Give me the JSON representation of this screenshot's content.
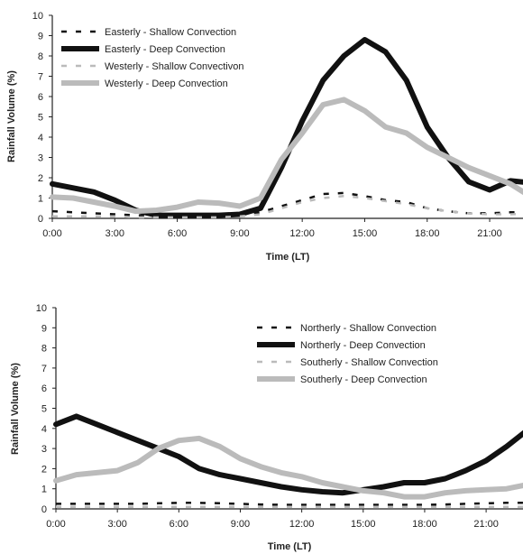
{
  "chart_data": [
    {
      "type": "line",
      "xlabel": "Time (LT)",
      "ylabel": "Rainfall Volume (%)",
      "ylim": [
        0,
        10
      ],
      "yticks": [
        0,
        1,
        2,
        3,
        4,
        5,
        6,
        7,
        8,
        9,
        10
      ],
      "xlim": [
        0,
        23
      ],
      "xticks": [
        "0:00",
        "3:00",
        "6:00",
        "9:00",
        "12:00",
        "15:00",
        "18:00",
        "21:00"
      ],
      "x": [
        0,
        1,
        2,
        3,
        4,
        5,
        6,
        7,
        8,
        9,
        10,
        11,
        12,
        13,
        14,
        15,
        16,
        17,
        18,
        19,
        20,
        21,
        22,
        23
      ],
      "grid": false,
      "legend_position": "top-left",
      "series": [
        {
          "name": "Easterly - Shallow Convection",
          "style": "dashed",
          "color": "#111111",
          "width": "thin",
          "values": [
            0.35,
            0.3,
            0.25,
            0.2,
            0.15,
            0.12,
            0.12,
            0.12,
            0.12,
            0.15,
            0.3,
            0.6,
            0.9,
            1.2,
            1.25,
            1.1,
            0.9,
            0.8,
            0.5,
            0.35,
            0.25,
            0.25,
            0.3,
            0.3
          ]
        },
        {
          "name": "Easterly - Deep Convection",
          "style": "solid",
          "color": "#111111",
          "width": "thick",
          "values": [
            1.7,
            1.5,
            1.3,
            0.9,
            0.4,
            0.15,
            0.15,
            0.15,
            0.15,
            0.2,
            0.5,
            2.5,
            4.8,
            6.8,
            8.0,
            8.8,
            8.2,
            6.8,
            4.5,
            3.0,
            1.8,
            1.4,
            1.85,
            1.75
          ]
        },
        {
          "name": "Westerly - Shallow Convectivon",
          "style": "dashed",
          "color": "#bbbbbb",
          "width": "thin",
          "values": [
            0.1,
            0.1,
            0.1,
            0.1,
            0.05,
            0.05,
            0.05,
            0.05,
            0.05,
            0.1,
            0.2,
            0.5,
            0.8,
            1.0,
            1.1,
            1.0,
            0.85,
            0.7,
            0.5,
            0.35,
            0.25,
            0.2,
            0.2,
            0.25
          ]
        },
        {
          "name": "Westerly - Deep Convection",
          "style": "solid",
          "color": "#bbbbbb",
          "width": "thick",
          "values": [
            1.05,
            1.0,
            0.8,
            0.6,
            0.35,
            0.4,
            0.55,
            0.8,
            0.75,
            0.6,
            1.0,
            2.9,
            4.2,
            5.6,
            5.85,
            5.3,
            4.5,
            4.2,
            3.5,
            3.0,
            2.5,
            2.1,
            1.7,
            1.05
          ]
        }
      ]
    },
    {
      "type": "line",
      "xlabel": "Time (LT)",
      "ylabel": "Rainfall Volume (%)",
      "ylim": [
        0,
        10
      ],
      "yticks": [
        0,
        1,
        2,
        3,
        4,
        5,
        6,
        7,
        8,
        9,
        10
      ],
      "xlim": [
        0,
        23
      ],
      "xticks": [
        "0:00",
        "3:00",
        "6:00",
        "9:00",
        "12:00",
        "15:00",
        "18:00",
        "21:00"
      ],
      "x": [
        0,
        1,
        2,
        3,
        4,
        5,
        6,
        7,
        8,
        9,
        10,
        11,
        12,
        13,
        14,
        15,
        16,
        17,
        18,
        19,
        20,
        21,
        22,
        23
      ],
      "grid": false,
      "legend_position": "top-right",
      "series": [
        {
          "name": "Northerly - Shallow Convection",
          "style": "dashed",
          "color": "#111111",
          "width": "thin",
          "values": [
            0.25,
            0.25,
            0.25,
            0.25,
            0.25,
            0.28,
            0.3,
            0.3,
            0.28,
            0.25,
            0.22,
            0.2,
            0.2,
            0.2,
            0.2,
            0.2,
            0.2,
            0.2,
            0.2,
            0.22,
            0.25,
            0.28,
            0.3,
            0.3
          ]
        },
        {
          "name": "Northerly - Deep Convection",
          "style": "solid",
          "color": "#111111",
          "width": "thick",
          "values": [
            4.2,
            4.6,
            4.2,
            3.8,
            3.4,
            3.0,
            2.6,
            2.0,
            1.7,
            1.5,
            1.3,
            1.1,
            0.95,
            0.85,
            0.8,
            0.95,
            1.1,
            1.3,
            1.3,
            1.5,
            1.9,
            2.4,
            3.1,
            3.9
          ]
        },
        {
          "name": "Southerly - Shallow Convection",
          "style": "dashed",
          "color": "#bbbbbb",
          "width": "thin",
          "values": [
            0.1,
            0.1,
            0.1,
            0.1,
            0.1,
            0.1,
            0.1,
            0.1,
            0.1,
            0.1,
            0.1,
            0.1,
            0.1,
            0.1,
            0.1,
            0.1,
            0.1,
            0.1,
            0.1,
            0.1,
            0.1,
            0.1,
            0.1,
            0.1
          ]
        },
        {
          "name": "Southerly - Deep Convection",
          "style": "solid",
          "color": "#bbbbbb",
          "width": "thick",
          "values": [
            1.4,
            1.7,
            1.8,
            1.9,
            2.3,
            3.0,
            3.4,
            3.5,
            3.1,
            2.5,
            2.1,
            1.8,
            1.6,
            1.3,
            1.1,
            0.9,
            0.8,
            0.6,
            0.6,
            0.8,
            0.9,
            0.95,
            1.0,
            1.2
          ]
        }
      ]
    }
  ]
}
